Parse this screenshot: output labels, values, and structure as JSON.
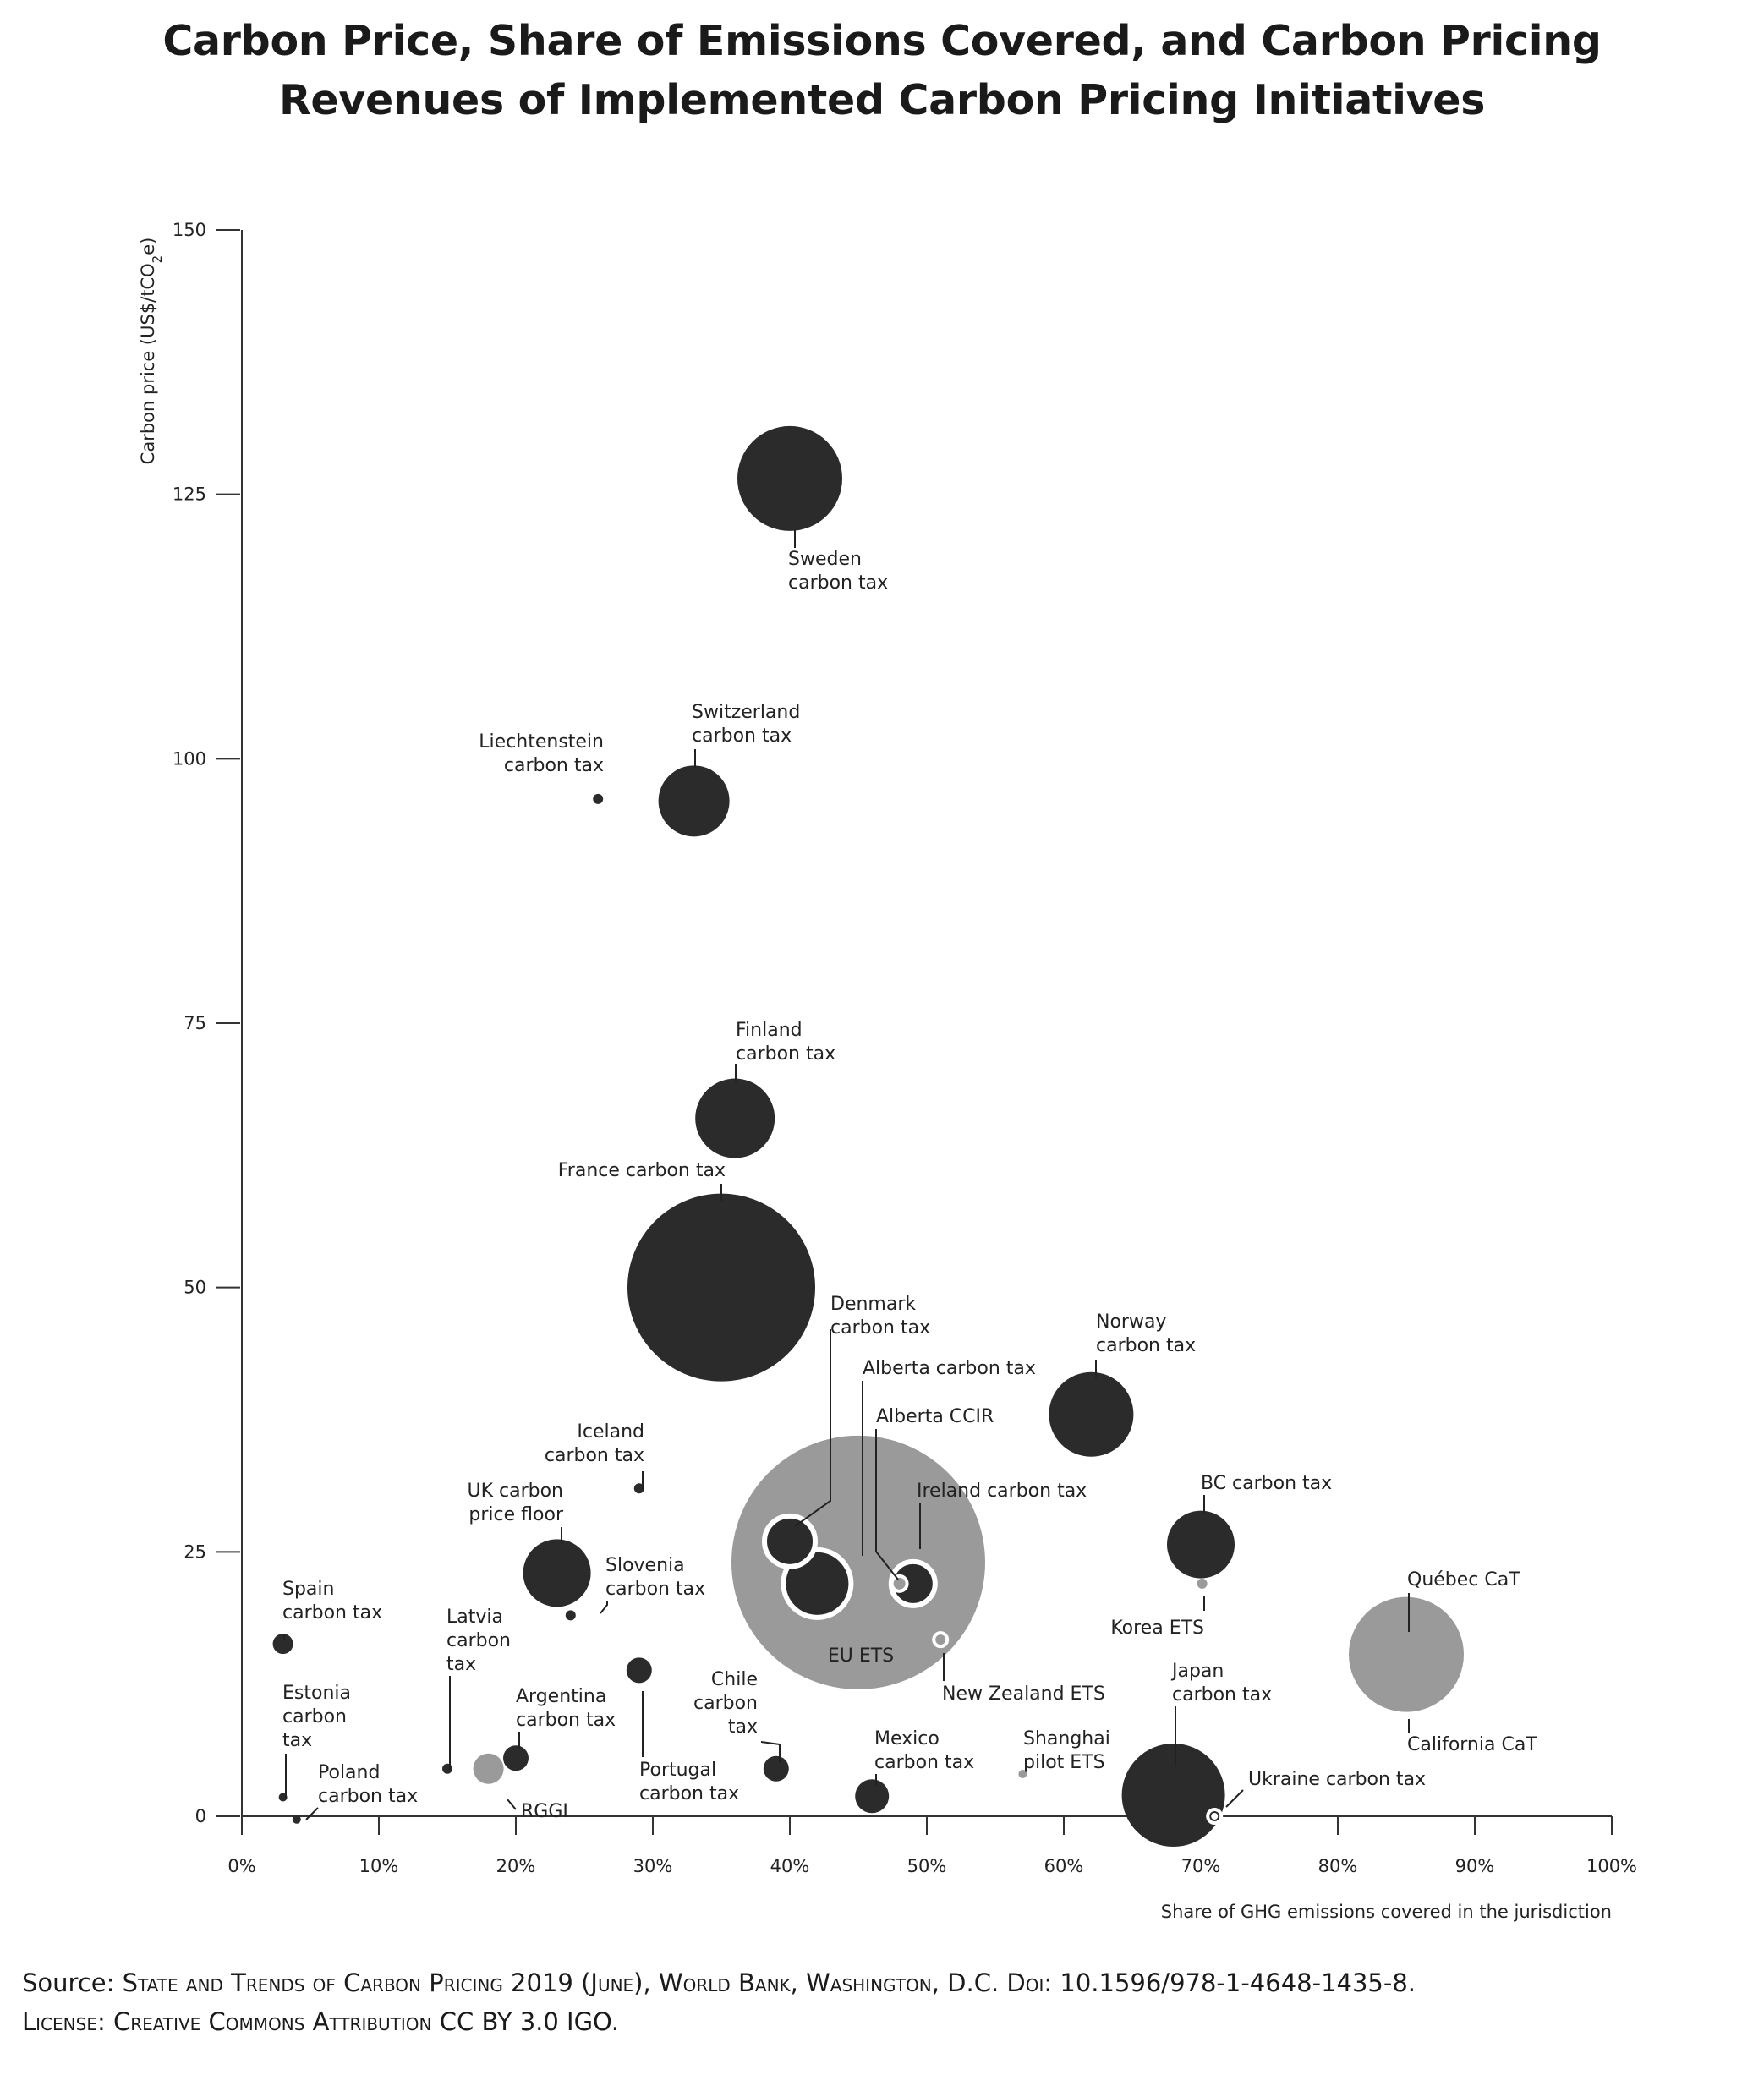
{
  "title": {
    "line1": "Carbon Price, Share of Emissions Covered, and Carbon Pricing",
    "line2": "Revenues of Implemented Carbon Pricing Initiatives"
  },
  "source": {
    "line1_prefix": "Source: ",
    "line1_body": "State and Trends of Carbon Pricing 2019 (June), World Bank, Washington, D.C. Doi: 10.1596/978-1-4648-1435-8.",
    "line2": "License: Creative Commons Attribution CC BY 3.0 IGO."
  },
  "colors": {
    "dark": "#2b2b2b",
    "gray": "#9a9a9a",
    "axis": "#333333"
  },
  "chart_data": {
    "type": "scatter",
    "subtype": "bubble",
    "xlabel": "Share of GHG emissions covered in the jurisdiction",
    "ylabel": "Carbon price (US$/tCO2e)",
    "xlim": [
      0,
      100
    ],
    "ylim": [
      0,
      150
    ],
    "x_ticks": [
      "0%",
      "10%",
      "20%",
      "30%",
      "40%",
      "50%",
      "60%",
      "70%",
      "80%",
      "90%",
      "100%"
    ],
    "y_ticks": [
      "0",
      "25",
      "50",
      "75",
      "100",
      "125",
      "150"
    ],
    "x_tick_values": [
      0,
      10,
      20,
      30,
      40,
      50,
      60,
      70,
      80,
      90,
      100
    ],
    "y_tick_values": [
      0,
      25,
      50,
      75,
      100,
      125,
      150
    ],
    "bubble_size_meaning": "carbon pricing revenues",
    "points": [
      {
        "label": "EU ETS",
        "x": 45,
        "y": 24,
        "r": 150,
        "color": "gray"
      },
      {
        "label": "France carbon tax",
        "x": 35,
        "y": 50,
        "r": 111,
        "color": "dark"
      },
      {
        "label": "Québec CaT",
        "x": 85,
        "y": 15.3,
        "r": 34,
        "color": "white-ring"
      },
      {
        "label": "California CaT",
        "x": 85,
        "y": 15.3,
        "r": 68,
        "color": "gray"
      },
      {
        "label": "Japan carbon tax",
        "x": 68,
        "y": 2,
        "r": 61,
        "color": "dark"
      },
      {
        "label": "Sweden carbon tax",
        "x": 40,
        "y": 126.5,
        "r": 62,
        "color": "dark"
      },
      {
        "label": "Switzerland carbon tax",
        "x": 33,
        "y": 96,
        "r": 42,
        "color": "dark"
      },
      {
        "label": "Finland carbon tax",
        "x": 36,
        "y": 66,
        "r": 47,
        "color": "dark"
      },
      {
        "label": "Norway carbon tax",
        "x": 62,
        "y": 38,
        "r": 50,
        "color": "dark"
      },
      {
        "label": "BC carbon tax",
        "x": 70,
        "y": 25.7,
        "r": 40,
        "color": "dark"
      },
      {
        "label": "UK carbon price floor",
        "x": 23,
        "y": 23,
        "r": 40,
        "color": "dark"
      },
      {
        "label": "Alberta carbon tax",
        "x": 42,
        "y": 22,
        "r": 40,
        "color": "dark-ring"
      },
      {
        "label": "Denmark carbon tax",
        "x": 40,
        "y": 26,
        "r": 30,
        "color": "dark-ring"
      },
      {
        "label": "Ireland carbon tax",
        "x": 49,
        "y": 22,
        "r": 26,
        "color": "dark-ring"
      },
      {
        "label": "Alberta CCIR",
        "x": 48,
        "y": 22,
        "r": 9,
        "color": "gray-ring"
      },
      {
        "label": "New Zealand ETS",
        "x": 51,
        "y": 16.7,
        "r": 8,
        "color": "gray-ring"
      },
      {
        "label": "Korea ETS",
        "x": 70.1,
        "y": 22,
        "r": 6,
        "color": "gray"
      },
      {
        "label": "Iceland carbon tax",
        "x": 29,
        "y": 31,
        "r": 6,
        "color": "dark"
      },
      {
        "label": "Liechtenstein carbon tax",
        "x": 26,
        "y": 96.2,
        "r": 6,
        "color": "dark"
      },
      {
        "label": "Slovenia carbon tax",
        "x": 24,
        "y": 19,
        "r": 6,
        "color": "dark"
      },
      {
        "label": "Spain carbon tax",
        "x": 3,
        "y": 16.3,
        "r": 12,
        "color": "dark"
      },
      {
        "label": "Estonia carbon tax",
        "x": 3,
        "y": 1.8,
        "r": 5,
        "color": "dark"
      },
      {
        "label": "Poland carbon tax",
        "x": 4,
        "y": -0.3,
        "r": 5,
        "color": "dark"
      },
      {
        "label": "Latvia carbon tax",
        "x": 15,
        "y": 4.5,
        "r": 6,
        "color": "dark"
      },
      {
        "label": "Argentina carbon tax",
        "x": 20,
        "y": 5.5,
        "r": 15,
        "color": "dark"
      },
      {
        "label": "RGGI",
        "x": 18,
        "y": 4.5,
        "r": 18,
        "color": "gray"
      },
      {
        "label": "Portugal carbon tax",
        "x": 29,
        "y": 13.8,
        "r": 15,
        "color": "dark"
      },
      {
        "label": "Chile carbon tax",
        "x": 39,
        "y": 4.5,
        "r": 15,
        "color": "dark"
      },
      {
        "label": "Mexico carbon tax",
        "x": 46,
        "y": 1.9,
        "r": 20,
        "color": "dark"
      },
      {
        "label": "Shanghai pilot ETS",
        "x": 57,
        "y": 4,
        "r": 5,
        "color": "gray"
      },
      {
        "label": "Ukraine carbon tax",
        "x": 71,
        "y": 0,
        "r": 8,
        "color": "white-ring"
      }
    ],
    "labels": [
      {
        "point": "Sweden carbon tax",
        "lines": [
          "Sweden",
          "carbon tax"
        ]
      },
      {
        "point": "Switzerland carbon tax",
        "lines": [
          "Switzerland",
          "carbon tax"
        ]
      },
      {
        "point": "Liechtenstein carbon tax",
        "lines": [
          "Liechtenstein",
          "carbon tax"
        ]
      },
      {
        "point": "Finland carbon tax",
        "lines": [
          "Finland",
          "carbon tax"
        ]
      },
      {
        "point": "France carbon tax",
        "lines": [
          "France carbon tax"
        ]
      },
      {
        "point": "Denmark carbon tax",
        "lines": [
          "Denmark",
          "carbon tax"
        ]
      },
      {
        "point": "Alberta carbon tax",
        "lines": [
          "Alberta carbon tax"
        ]
      },
      {
        "point": "Alberta CCIR",
        "lines": [
          "Alberta CCIR"
        ]
      },
      {
        "point": "Ireland carbon tax",
        "lines": [
          "Ireland carbon tax"
        ]
      },
      {
        "point": "Norway carbon tax",
        "lines": [
          "Norway",
          "carbon tax"
        ]
      },
      {
        "point": "BC carbon tax",
        "lines": [
          "BC carbon tax"
        ]
      },
      {
        "point": "Korea ETS",
        "lines": [
          "Korea ETS"
        ]
      },
      {
        "point": "Québec CaT",
        "lines": [
          "Québec CaT"
        ]
      },
      {
        "point": "California CaT",
        "lines": [
          "California CaT"
        ]
      },
      {
        "point": "Iceland carbon tax",
        "lines": [
          "Iceland",
          "carbon tax"
        ]
      },
      {
        "point": "UK carbon price floor",
        "lines": [
          "UK carbon",
          "price floor"
        ]
      },
      {
        "point": "Slovenia carbon tax",
        "lines": [
          "Slovenia",
          "carbon tax"
        ]
      },
      {
        "point": "Spain carbon tax",
        "lines": [
          "Spain",
          "carbon tax"
        ]
      },
      {
        "point": "Latvia carbon tax",
        "lines": [
          "Latvia",
          "carbon",
          "tax"
        ]
      },
      {
        "point": "Estonia carbon tax",
        "lines": [
          "Estonia",
          "carbon",
          "tax"
        ]
      },
      {
        "point": "Poland carbon tax",
        "lines": [
          "Poland",
          "carbon tax"
        ]
      },
      {
        "point": "Argentina carbon tax",
        "lines": [
          "Argentina",
          "carbon tax"
        ]
      },
      {
        "point": "RGGI",
        "lines": [
          "RGGI"
        ]
      },
      {
        "point": "Portugal carbon tax",
        "lines": [
          "Portugal",
          "carbon tax"
        ]
      },
      {
        "point": "Chile carbon tax",
        "lines": [
          "Chile",
          "carbon",
          "tax"
        ]
      },
      {
        "point": "EU ETS",
        "lines": [
          "EU ETS"
        ]
      },
      {
        "point": "New Zealand ETS",
        "lines": [
          "New Zealand ETS"
        ]
      },
      {
        "point": "Mexico carbon tax",
        "lines": [
          "Mexico",
          "carbon tax"
        ]
      },
      {
        "point": "Shanghai pilot ETS",
        "lines": [
          "Shanghai",
          "pilot ETS"
        ]
      },
      {
        "point": "Japan carbon tax",
        "lines": [
          "Japan",
          "carbon tax"
        ]
      },
      {
        "point": "Ukraine carbon tax",
        "lines": [
          "Ukraine carbon tax"
        ]
      }
    ]
  }
}
